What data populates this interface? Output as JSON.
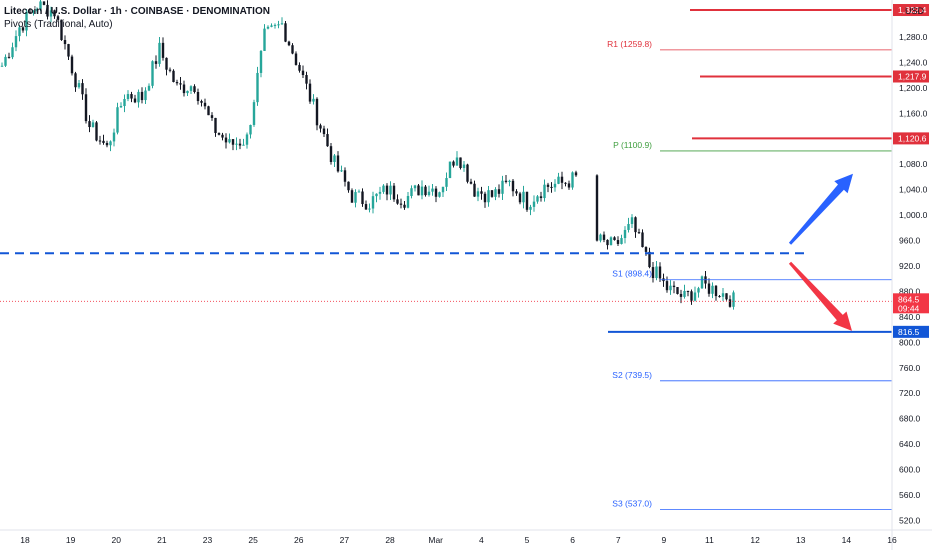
{
  "header": {
    "title": "Litecoin / U.S. Dollar · 1h · COINBASE · DENOMINATION",
    "indicator": "Pivots (Traditional, Auto)"
  },
  "currency": "USD",
  "colors": {
    "up": "#26a69a",
    "down": "#131722",
    "resistance": "#e0313c",
    "support": "#1256d6",
    "pivot": "#3f9e3f",
    "arrow_up": "#2962ff",
    "arrow_down": "#f23645"
  },
  "chart_data": {
    "type": "line",
    "series_name": "Candlestick price",
    "x": [
      "Feb 18",
      "Feb 19",
      "Feb 20",
      "Feb 21",
      "Feb 23",
      "Feb 25",
      "Feb 26",
      "Feb 27",
      "Feb 28",
      "Mar",
      "Mar 4",
      "Mar 5",
      "Mar 6",
      "Mar 7",
      "Mar 9",
      "Mar 11"
    ],
    "price_path": [
      [
        0,
        1235
      ],
      [
        1,
        1295
      ],
      [
        2,
        1330
      ],
      [
        3,
        1320
      ],
      [
        4,
        1232
      ],
      [
        5,
        1140
      ],
      [
        6,
        1105
      ],
      [
        7,
        1190
      ],
      [
        8,
        1185
      ],
      [
        9,
        1260
      ],
      [
        10,
        1200
      ],
      [
        11,
        1205
      ],
      [
        12,
        1140
      ],
      [
        13,
        1110
      ],
      [
        14,
        1120
      ],
      [
        15,
        1280
      ],
      [
        16,
        1300
      ],
      [
        17,
        1230
      ],
      [
        18,
        1155
      ],
      [
        19,
        1080
      ],
      [
        20,
        1030
      ],
      [
        21,
        1020
      ],
      [
        22,
        1040
      ],
      [
        23,
        1025
      ],
      [
        24,
        1045
      ],
      [
        25,
        1040
      ],
      [
        26,
        1100
      ],
      [
        27,
        1040
      ],
      [
        28,
        1030
      ],
      [
        29,
        1050
      ],
      [
        30,
        1020
      ],
      [
        31,
        1045
      ],
      [
        32,
        1050
      ],
      [
        33,
        1060
      ],
      [
        34,
        960
      ],
      [
        35,
        950
      ],
      [
        36,
        985
      ],
      [
        37,
        920
      ],
      [
        38,
        885
      ],
      [
        39,
        870
      ],
      [
        40,
        890
      ],
      [
        41,
        880
      ],
      [
        42,
        862
      ]
    ],
    "ylim": [
      505,
      1335
    ],
    "y_ticks": [
      "1,280.0",
      "1,240.0",
      "1,200.0",
      "1,160.0",
      "1,120.0",
      "1,080.0",
      "1,040.0",
      "1,000.0",
      "960.0",
      "920.0",
      "880.0",
      "840.0",
      "800.0",
      "760.0",
      "720.0",
      "680.0",
      "640.0",
      "600.0",
      "560.0",
      "520.0"
    ],
    "x_ticks": [
      "18",
      "19",
      "20",
      "21",
      "23",
      "25",
      "26",
      "27",
      "28",
      "Mar",
      "4",
      "5",
      "6",
      "7",
      "9",
      "11",
      "12",
      "13",
      "14",
      "16"
    ],
    "pivots": [
      {
        "label": "R1",
        "value": 1259.8,
        "text": "R1 (1259.8)",
        "color": "#e0313c"
      },
      {
        "label": "P",
        "value": 1100.9,
        "text": "P (1100.9)",
        "color": "#3f9e3f"
      },
      {
        "label": "S1",
        "value": 898.4,
        "text": "S1 (898.4)",
        "color": "#2962ff"
      },
      {
        "label": "S2",
        "value": 739.5,
        "text": "S2 (739.5)",
        "color": "#2962ff"
      },
      {
        "label": "S3",
        "value": 537.0,
        "text": "S3 (537.0)",
        "color": "#2962ff"
      }
    ],
    "horizontal_levels": [
      {
        "value": 1322.4,
        "label": "1,322.4",
        "color": "#e0313c"
      },
      {
        "value": 1217.9,
        "label": "1,217.9",
        "color": "#e0313c"
      },
      {
        "value": 1120.6,
        "label": "1,120.6",
        "color": "#e0313c"
      },
      {
        "value": 816.5,
        "label": "816.5",
        "color": "#1256d6"
      }
    ],
    "dashed_level": {
      "value": 940,
      "color": "#1256d6"
    },
    "last_price": {
      "value": 864.5,
      "label": "864.5",
      "countdown": "09:44",
      "color": "#f23645"
    },
    "arrows": [
      {
        "direction": "up",
        "from": 955,
        "to": 1065,
        "color": "#2962ff"
      },
      {
        "direction": "down",
        "from": 925,
        "to": 818,
        "color": "#f23645"
      }
    ]
  }
}
